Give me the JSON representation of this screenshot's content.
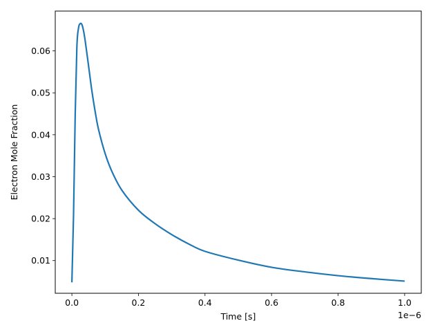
{
  "chart_data": {
    "type": "line",
    "title": "",
    "xlabel": "Time [s]",
    "ylabel": "Electron Mole Fraction",
    "x_offset_label": "1e−6",
    "x_scale": 1e-06,
    "xlim": [
      -0.05,
      1.05
    ],
    "ylim": [
      0.0022,
      0.0695
    ],
    "x_ticks": [
      0.0,
      0.2,
      0.4,
      0.6,
      0.8,
      1.0
    ],
    "x_tick_labels": [
      "0.0",
      "0.2",
      "0.4",
      "0.6",
      "0.8",
      "1.0"
    ],
    "y_ticks": [
      0.01,
      0.02,
      0.03,
      0.04,
      0.05,
      0.06
    ],
    "y_tick_labels": [
      "0.01",
      "0.02",
      "0.03",
      "0.04",
      "0.05",
      "0.06"
    ],
    "grid": false,
    "legend": "none",
    "series": [
      {
        "color": "#1f77b4",
        "x": [
          0.0,
          0.005,
          0.01,
          0.015,
          0.02,
          0.025,
          0.03,
          0.035,
          0.04,
          0.05,
          0.06,
          0.07,
          0.08,
          0.1,
          0.12,
          0.15,
          0.2,
          0.25,
          0.3,
          0.35,
          0.4,
          0.5,
          0.6,
          0.7,
          0.8,
          0.9,
          1.0
        ],
        "y": [
          0.0048,
          0.021,
          0.045,
          0.061,
          0.0655,
          0.0665,
          0.0663,
          0.0648,
          0.0624,
          0.0565,
          0.0505,
          0.0455,
          0.0413,
          0.0355,
          0.0313,
          0.0268,
          0.022,
          0.0188,
          0.0162,
          0.014,
          0.0122,
          0.0101,
          0.0084,
          0.0073,
          0.0064,
          0.0057,
          0.0051
        ]
      }
    ]
  }
}
